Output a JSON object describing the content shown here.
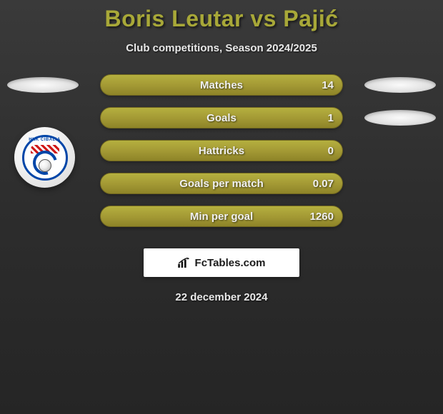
{
  "title": "Boris Leutar vs Pajić",
  "subtitle": "Club competitions, Season 2024/2025",
  "rows": [
    {
      "label": "Matches",
      "value": "14",
      "show_left_oval": true,
      "show_right_oval": true
    },
    {
      "label": "Goals",
      "value": "1",
      "show_left_oval": false,
      "show_right_oval": true
    },
    {
      "label": "Hattricks",
      "value": "0",
      "show_left_oval": false,
      "show_right_oval": false
    },
    {
      "label": "Goals per match",
      "value": "0.07",
      "show_left_oval": false,
      "show_right_oval": false
    },
    {
      "label": "Min per goal",
      "value": "1260",
      "show_left_oval": false,
      "show_right_oval": false
    }
  ],
  "badge": {
    "ring_text": "HNK CIBALIA"
  },
  "footer_brand": "FcTables.com",
  "date": "22 december 2024",
  "colors": {
    "bar_bg": "#a49a35",
    "title_color": "#a8a838"
  }
}
